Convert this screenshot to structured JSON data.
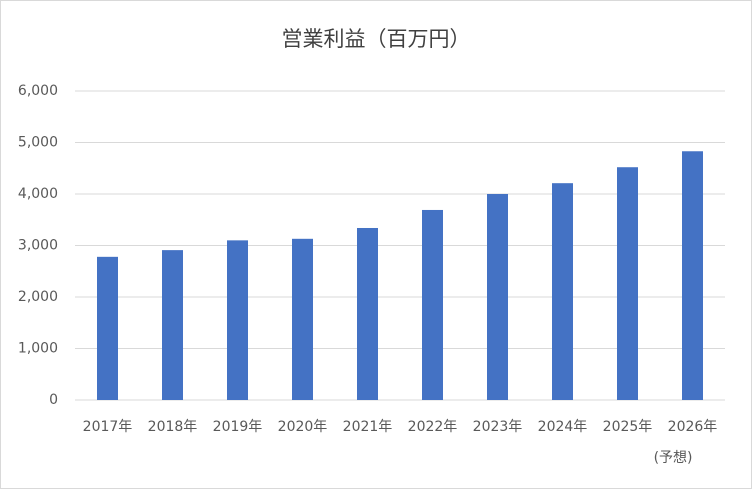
{
  "chart_data": {
    "type": "bar",
    "title": "営業利益（百万円）",
    "categories": [
      "2017年",
      "2018年",
      "2019年",
      "2020年",
      "2021年",
      "2022年",
      "2023年",
      "2024年",
      "2025年",
      "2026年\n(予想)"
    ],
    "values": [
      2780,
      2910,
      3100,
      3130,
      3340,
      3690,
      4000,
      4210,
      4520,
      4830
    ],
    "color": "#4472c4",
    "ylim": [
      0,
      6000
    ],
    "yticks": [
      0,
      {
        "value": 1000,
        "label": "1,000"
      },
      {
        "value": 2000,
        "label": "2,000"
      },
      {
        "value": 3000,
        "label": "3,000"
      },
      {
        "value": 4000,
        "label": "4,000"
      },
      {
        "value": 5000,
        "label": "5,000"
      },
      {
        "value": 6000,
        "label": "6,000"
      }
    ],
    "grid": true
  }
}
